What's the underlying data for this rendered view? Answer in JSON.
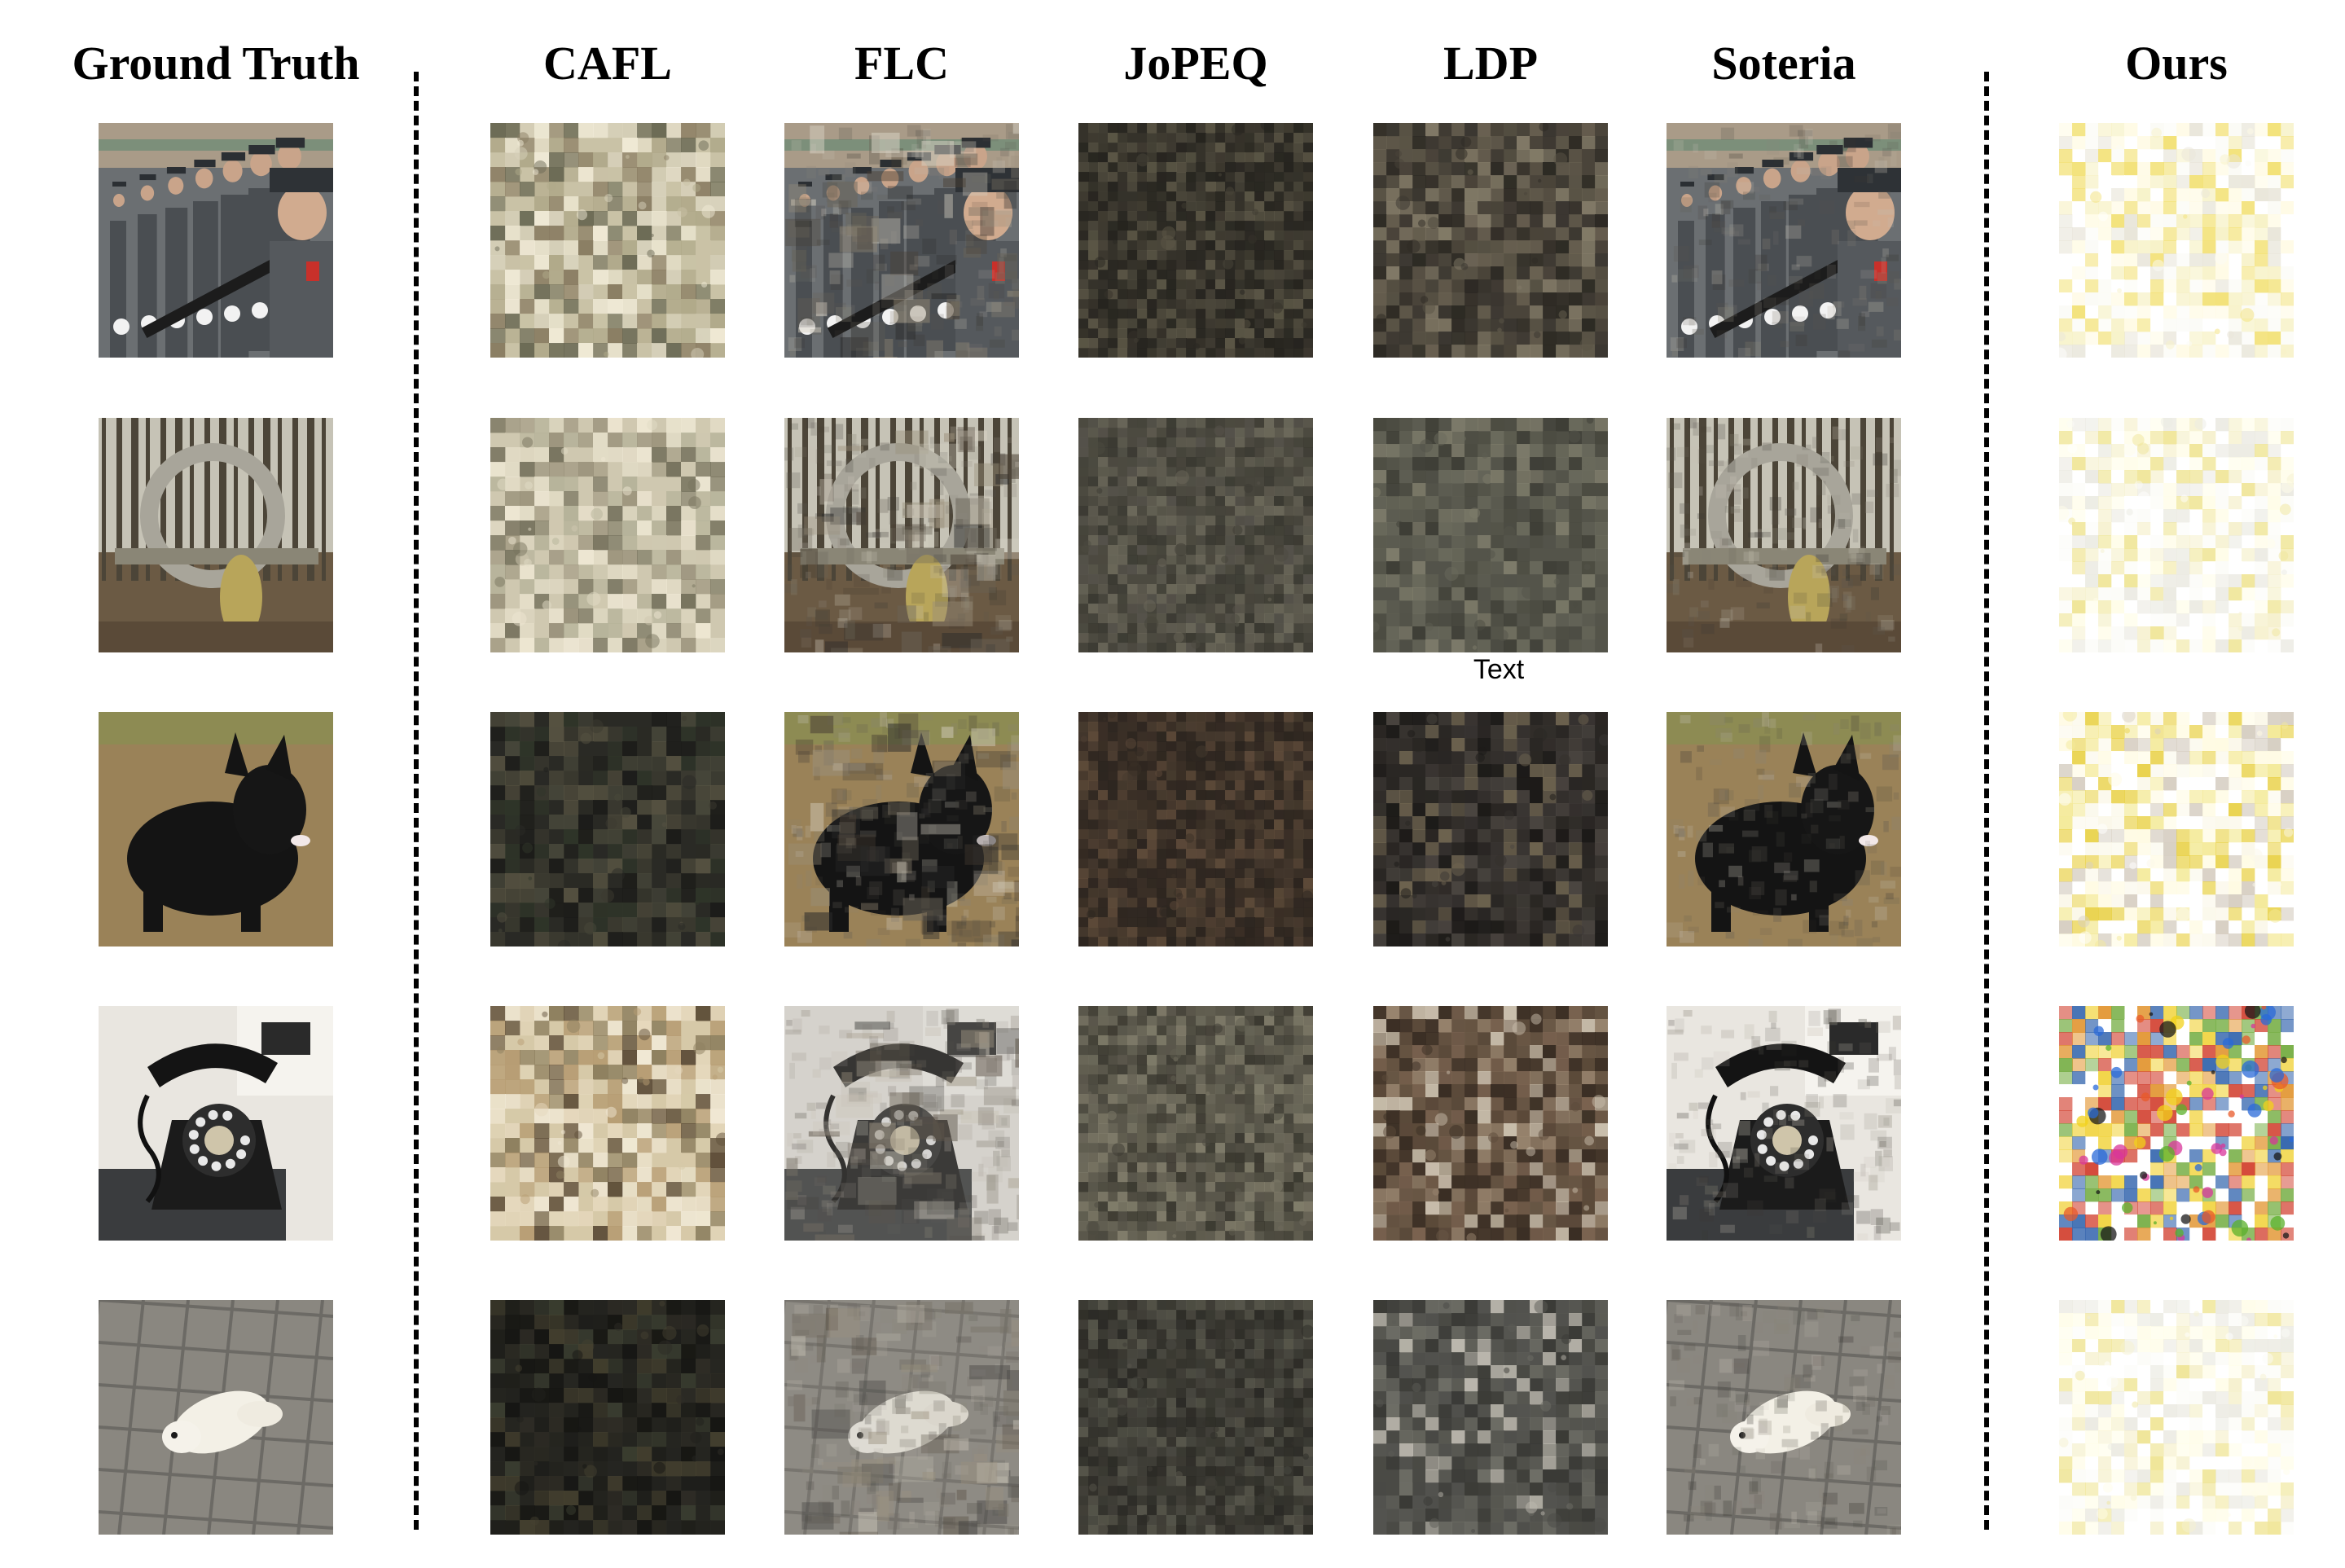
{
  "figure": {
    "columns": [
      {
        "key": "gt",
        "title": "Ground Truth"
      },
      {
        "key": "cafl",
        "title": "CAFL"
      },
      {
        "key": "flc",
        "title": "FLC"
      },
      {
        "key": "jopeq",
        "title": "JoPEQ"
      },
      {
        "key": "ldp",
        "title": "LDP"
      },
      {
        "key": "soteria",
        "title": "Soteria"
      },
      {
        "key": "ours",
        "title": "Ours"
      }
    ],
    "rows": [
      {
        "subject": "soldiers"
      },
      {
        "subject": "stone-arch"
      },
      {
        "subject": "scottish-terrier"
      },
      {
        "subject": "rotary-telephone"
      },
      {
        "subject": "white-ferret"
      }
    ],
    "floating_text": "Text"
  }
}
